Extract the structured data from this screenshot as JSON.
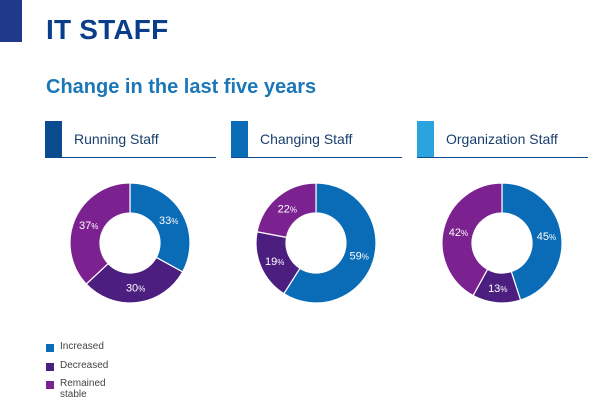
{
  "header": {
    "title": "IT STAFF",
    "subtitle": "Change in the last five years"
  },
  "colors": {
    "accent": "#1f3a8a",
    "title": "#0b3e8a",
    "subtitle": "#1b77b8",
    "increased": "#0a6cb6",
    "decreased": "#4b1e7f",
    "stable": "#7c2290",
    "tab_running": "#0a4a8f",
    "tab_changing": "#0a6cb6",
    "tab_organization": "#2aa3de"
  },
  "legend": [
    {
      "label": "Increased",
      "color_key": "increased"
    },
    {
      "label": "Decreased",
      "color_key": "decreased"
    },
    {
      "label": "Remained stable",
      "color_key": "stable"
    }
  ],
  "chart_data": [
    {
      "type": "pie",
      "title": "Running Staff",
      "tab_color_key": "tab_running",
      "categories": [
        "Increased",
        "Decreased",
        "Remained stable"
      ],
      "values": [
        33,
        30,
        37
      ]
    },
    {
      "type": "pie",
      "title": "Changing Staff",
      "tab_color_key": "tab_changing",
      "categories": [
        "Increased",
        "Decreased",
        "Remained stable"
      ],
      "values": [
        59,
        19,
        22
      ]
    },
    {
      "type": "pie",
      "title": "Organization Staff",
      "tab_color_key": "tab_organization",
      "categories": [
        "Increased",
        "Decreased",
        "Remained stable"
      ],
      "values": [
        45,
        13,
        42
      ]
    }
  ]
}
